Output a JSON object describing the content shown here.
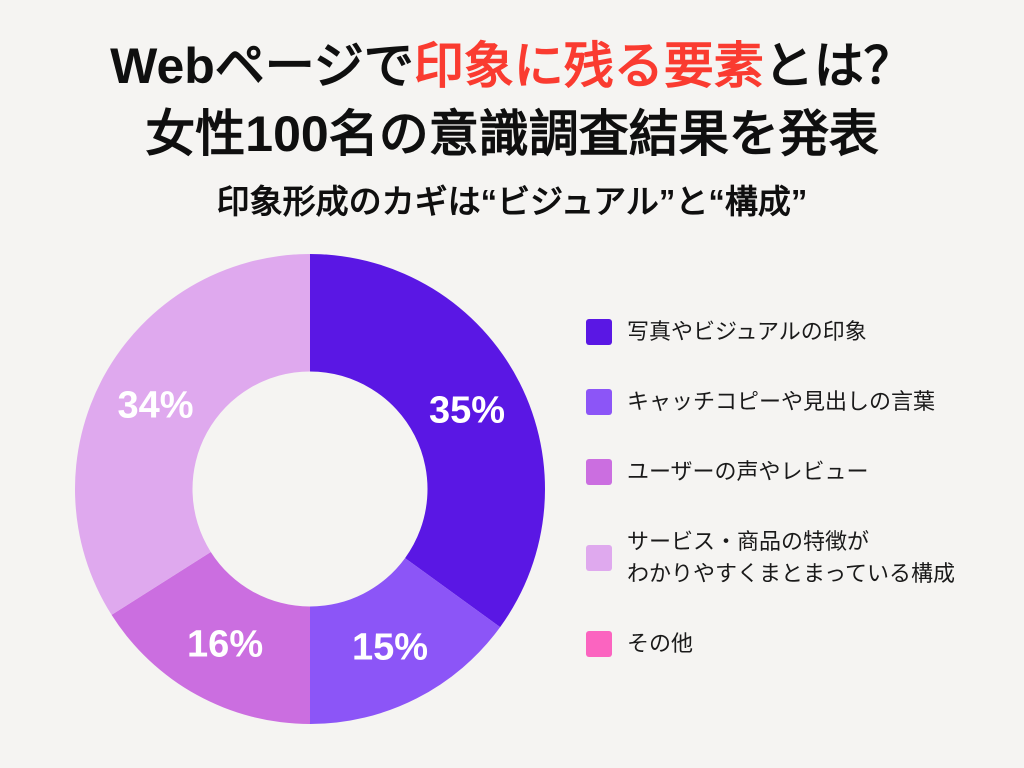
{
  "theme": {
    "background": "#f5f4f2",
    "ink": "#0f0f0f",
    "highlight": "#fa3b30",
    "legend_text": "#1a1a1a"
  },
  "header": {
    "title_line1_prefix": "Webページで",
    "title_line1_highlight": "印象に残る要素",
    "title_line1_suffix": "とは？",
    "title_line2": "女性100名の意識調査結果を発表",
    "subtitle": "印象形成のカギは“ビジュアル”と“構成”"
  },
  "chart_data": {
    "type": "pie",
    "variant": "donut",
    "title": "Webページで印象に残る要素（女性100名意識調査）",
    "start_angle_deg": 0,
    "direction": "clockwise",
    "inner_radius_ratio": 0.5,
    "total": 100,
    "slice_label_color": "#ffffff",
    "legend_position": "right",
    "series": [
      {
        "label": "写真やビジュアルの印象",
        "value": 35,
        "pct_label": "35%",
        "color": "#5a17e4"
      },
      {
        "label": "キャッチコピーや見出しの言葉",
        "value": 15,
        "pct_label": "15%",
        "color": "#8c55f7"
      },
      {
        "label": "ユーザーの声やレビュー",
        "value": 16,
        "pct_label": "16%",
        "color": "#cb6ee0"
      },
      {
        "label": "サービス・商品の特徴が\nわかりやすくまとまっている構成",
        "value": 34,
        "pct_label": "34%",
        "color": "#dfa9ee"
      },
      {
        "label": "その他",
        "value": 0,
        "pct_label": "",
        "color": "#fb64c0"
      }
    ]
  }
}
